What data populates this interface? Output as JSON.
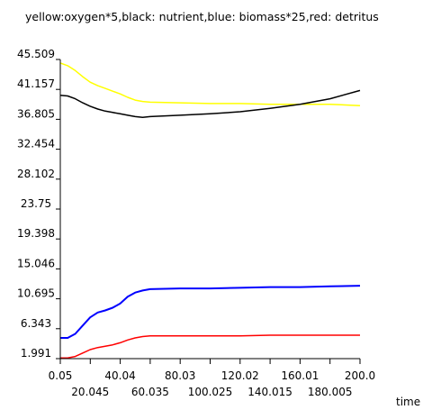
{
  "chart_data": {
    "type": "line",
    "title": "yellow:oxygen*5,black: nutrient,blue: biomass*25,red: detritus",
    "xlabel": "time",
    "ylabel": "",
    "xlim": [
      0.05,
      200.0
    ],
    "ylim": [
      1.991,
      45.509
    ],
    "grid": false,
    "legend": "in title",
    "y_ticks": [
      "45.509",
      "41.157",
      "36.805",
      "32.454",
      "28.102",
      "23.75",
      "19.398",
      "15.046",
      "10.695",
      "6.343",
      "1.991"
    ],
    "x_ticks_upper": [
      "0.05",
      "40.04",
      "80.03",
      "120.02",
      "160.01",
      "200.0"
    ],
    "x_ticks_lower": [
      "20.045",
      "60.035",
      "100.025",
      "140.015",
      "180.005"
    ],
    "series": [
      {
        "color": "#ffff00",
        "x": [
          0.05,
          5,
          10,
          15,
          20,
          25,
          30,
          35,
          40,
          45,
          50,
          55,
          60,
          80,
          100,
          120,
          140,
          160,
          180,
          200
        ],
        "y": [
          45.0,
          44.6,
          43.9,
          43.0,
          42.2,
          41.7,
          41.3,
          40.9,
          40.5,
          40.0,
          39.6,
          39.4,
          39.3,
          39.2,
          39.1,
          39.1,
          39.0,
          39.0,
          39.0,
          38.8
        ]
      },
      {
        "color": "#000000",
        "x": [
          0.05,
          5,
          10,
          15,
          20,
          25,
          30,
          35,
          40,
          45,
          50,
          55,
          60,
          80,
          100,
          120,
          140,
          160,
          180,
          200
        ],
        "y": [
          40.3,
          40.2,
          39.8,
          39.2,
          38.7,
          38.3,
          38.0,
          37.8,
          37.6,
          37.4,
          37.2,
          37.1,
          37.2,
          37.4,
          37.6,
          37.9,
          38.4,
          39.0,
          39.8,
          41.0
        ]
      },
      {
        "color": "#0000ff",
        "x": [
          0.05,
          5,
          10,
          15,
          20,
          25,
          30,
          35,
          40,
          45,
          50,
          55,
          60,
          80,
          100,
          120,
          140,
          160,
          180,
          200
        ],
        "y": [
          5.0,
          5.0,
          5.6,
          6.8,
          8.0,
          8.7,
          9.0,
          9.4,
          10.0,
          11.0,
          11.6,
          11.9,
          12.1,
          12.2,
          12.2,
          12.3,
          12.4,
          12.4,
          12.5,
          12.6
        ]
      },
      {
        "color": "#ff0000",
        "x": [
          0.05,
          5,
          10,
          15,
          20,
          25,
          30,
          35,
          40,
          45,
          50,
          55,
          60,
          80,
          100,
          120,
          140,
          160,
          180,
          200
        ],
        "y": [
          2.1,
          2.1,
          2.3,
          2.8,
          3.3,
          3.6,
          3.8,
          4.0,
          4.3,
          4.7,
          5.0,
          5.2,
          5.3,
          5.3,
          5.3,
          5.3,
          5.4,
          5.4,
          5.4,
          5.4
        ]
      }
    ]
  }
}
